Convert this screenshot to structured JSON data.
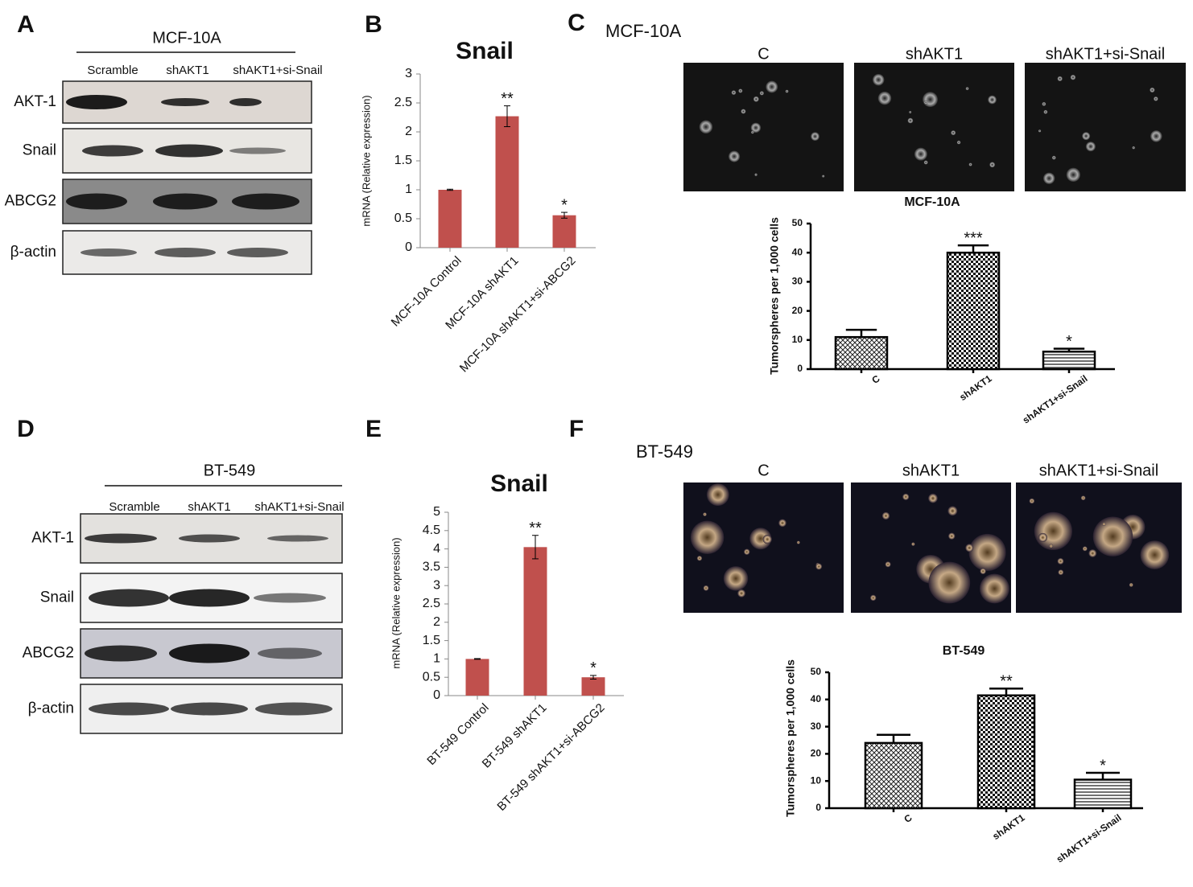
{
  "panel_labels": [
    "A",
    "B",
    "C",
    "D",
    "E",
    "F"
  ],
  "blots": [
    {
      "title": "MCF-10A",
      "lanes": [
        "Scramble",
        "shAKT1",
        "shAKT1+si-Snail"
      ],
      "rows": [
        "AKT-1",
        "Snail",
        "ABCG2",
        "β-actin"
      ]
    },
    {
      "title": "BT-549",
      "lanes": [
        "Scramble",
        "shAKT1",
        "shAKT1+si-Snail"
      ],
      "rows": [
        "AKT-1",
        "Snail",
        "ABCG2",
        "β-actin"
      ]
    }
  ],
  "micrographs": [
    {
      "title": "MCF-10A",
      "labels": [
        "C",
        "shAKT1",
        "shAKT1+si-Snail"
      ]
    },
    {
      "title": "BT-549",
      "labels": [
        "C",
        "shAKT1",
        "shAKT1+si-Snail"
      ]
    }
  ],
  "chart_data": [
    {
      "type": "bar",
      "title": "Snail",
      "y_label": "mRNA (Relative expression)",
      "categories": [
        "MCF-10A Control",
        "MCF-10A shAKT1",
        "MCF-10A shAKT1+si-ABCG2"
      ],
      "values": [
        1,
        2.27,
        0.56
      ],
      "errors": [
        0.01,
        0.18,
        0.05
      ],
      "error_direction": "both",
      "significance": [
        null,
        "**",
        "*"
      ],
      "color": "#c0504d",
      "ylim": [
        0,
        3
      ],
      "yticks": [
        0,
        0.5,
        1,
        1.5,
        2,
        2.5,
        3
      ]
    },
    {
      "type": "bar",
      "title": "MCF-10A",
      "y_label": "Tumorspheres per 1,000 cells",
      "categories": [
        "C",
        "shAKT1",
        "shAKT1+si-Snail"
      ],
      "values": [
        11,
        40,
        6
      ],
      "errors": [
        2.5,
        2.5,
        1
      ],
      "error_direction": "up",
      "significance": [
        null,
        "***",
        "*"
      ],
      "patterns": [
        "crosshatch",
        "checker",
        "hlines"
      ],
      "ylim": [
        0,
        50
      ],
      "yticks": [
        0,
        10,
        20,
        30,
        40,
        50
      ]
    },
    {
      "type": "bar",
      "title": "Snail",
      "y_label": "mRNA (Relative expression)",
      "categories": [
        "BT-549 Control",
        "BT-549 shAKT1",
        "BT-549 shAKT1+si-ABCG2"
      ],
      "values": [
        1,
        4.05,
        0.5
      ],
      "errors": [
        0.01,
        0.32,
        0.05
      ],
      "error_direction": "both",
      "significance": [
        null,
        "**",
        "*"
      ],
      "color": "#c0504d",
      "ylim": [
        0,
        5
      ],
      "yticks": [
        0,
        0.5,
        1,
        1.5,
        2,
        2.5,
        3,
        3.5,
        4,
        4.5,
        5
      ]
    },
    {
      "type": "bar",
      "title": "BT-549",
      "y_label": "Tumorspheres per 1,000 cells",
      "categories": [
        "C",
        "shAKT1",
        "shAKT1+si-Snail"
      ],
      "values": [
        24,
        41.5,
        10.5
      ],
      "errors": [
        3,
        2.5,
        2.5
      ],
      "error_direction": "up",
      "significance": [
        null,
        "**",
        "*"
      ],
      "patterns": [
        "crosshatch",
        "checker",
        "hlines"
      ],
      "ylim": [
        0,
        50
      ],
      "yticks": [
        0,
        10,
        20,
        30,
        40,
        50
      ]
    }
  ]
}
